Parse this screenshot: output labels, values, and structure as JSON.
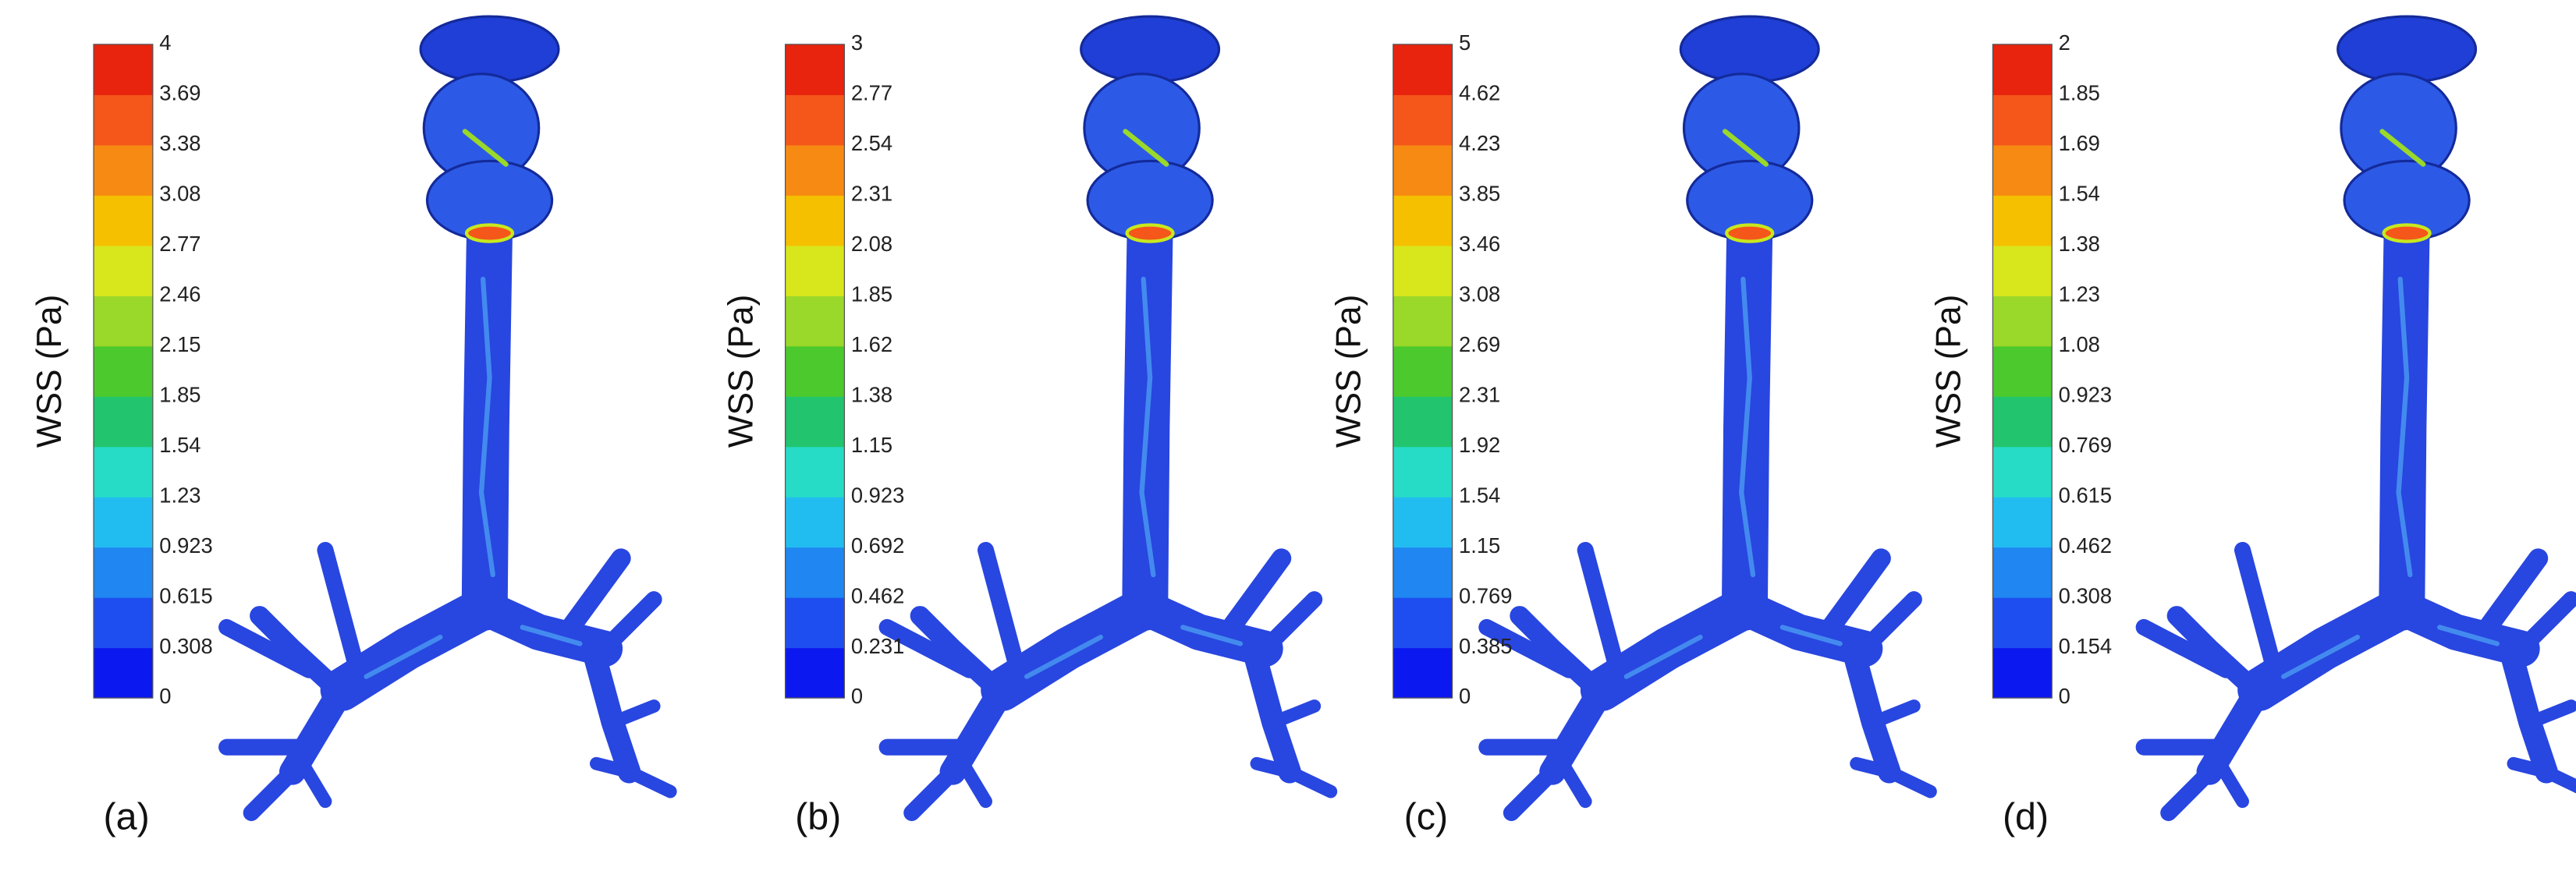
{
  "panels": [
    {
      "label": "(a)",
      "colorbar_label": "WSS (Pa)",
      "ticks": [
        "0",
        "0.308",
        "0.615",
        "0.923",
        "1.23",
        "1.54",
        "1.85",
        "2.15",
        "2.46",
        "2.77",
        "3.08",
        "3.38",
        "3.69",
        "4"
      ]
    },
    {
      "label": "(b)",
      "colorbar_label": "WSS (Pa)",
      "ticks": [
        "0",
        "0.231",
        "0.462",
        "0.692",
        "0.923",
        "1.15",
        "1.38",
        "1.62",
        "1.85",
        "2.08",
        "2.31",
        "2.54",
        "2.77",
        "3"
      ]
    },
    {
      "label": "(c)",
      "colorbar_label": "WSS (Pa)",
      "ticks": [
        "0",
        "0.385",
        "0.769",
        "1.15",
        "1.54",
        "1.92",
        "2.31",
        "2.69",
        "3.08",
        "3.46",
        "3.85",
        "4.23",
        "4.62",
        "5"
      ]
    },
    {
      "label": "(d)",
      "colorbar_label": "WSS (Pa)",
      "ticks": [
        "0",
        "0.154",
        "0.308",
        "0.462",
        "0.615",
        "0.769",
        "0.923",
        "1.08",
        "1.23",
        "1.38",
        "1.54",
        "1.69",
        "1.85",
        "2"
      ]
    }
  ]
}
